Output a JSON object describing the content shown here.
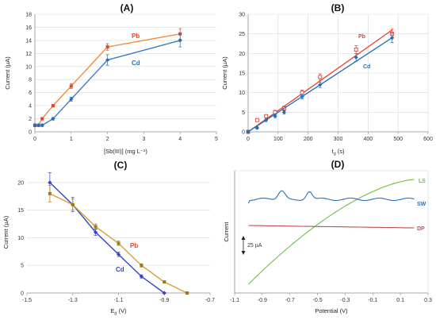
{
  "colors": {
    "pb": "#e8402b",
    "pb_line": "#f08a3c",
    "cd": "#1f6fbf",
    "cd_line": "#3a7ec9",
    "c_pb": "#a07818",
    "c_pb_line": "#d4a236",
    "c_cd": "#3344c8",
    "d_ls": "#6fbf44",
    "d_sw": "#2a6fb8",
    "d_dp": "#c0504d",
    "grid": "#d9d9d9",
    "axis": "#8c8c8c"
  },
  "chart_data": [
    {
      "id": "A",
      "type": "line",
      "title": "(A)",
      "xlabel": "[Sb(III)] (mg L⁻¹)",
      "ylabel": "Current (µA)",
      "xlim": [
        0,
        5
      ],
      "ylim": [
        0,
        18
      ],
      "xticks": [
        "0",
        "1",
        "2",
        "3",
        "4",
        "5"
      ],
      "yticks": [
        "0",
        "2",
        "4",
        "6",
        "8",
        "10",
        "12",
        "14",
        "16",
        "18"
      ],
      "grid": "horizontal",
      "series": [
        {
          "name": "Pb",
          "x": [
            0,
            0.1,
            0.2,
            0.5,
            1,
            2,
            4
          ],
          "y": [
            1,
            1,
            2,
            4,
            7,
            13,
            15
          ],
          "err": [
            0.2,
            0.2,
            0.2,
            0.2,
            0.4,
            0.5,
            0.8
          ]
        },
        {
          "name": "Cd",
          "x": [
            0,
            0.1,
            0.2,
            0.5,
            1,
            2,
            4
          ],
          "y": [
            1,
            1,
            1,
            2,
            5,
            11,
            14
          ],
          "err": [
            0.2,
            0.2,
            0.2,
            0.2,
            0.3,
            0.8,
            1.0
          ]
        }
      ]
    },
    {
      "id": "B",
      "type": "scatter",
      "title": "(B)",
      "xlabel": "t",
      "xlabel_sub": "d",
      "xlabel_unit": " (s)",
      "ylabel": "Current (µA)",
      "xlim": [
        0,
        600
      ],
      "ylim": [
        0,
        30
      ],
      "xticks": [
        "0",
        "100",
        "200",
        "300",
        "400",
        "500",
        "600"
      ],
      "yticks": [
        "0",
        "5",
        "10",
        "15",
        "20",
        "25",
        "30"
      ],
      "grid": "both",
      "series": [
        {
          "name": "Pb",
          "x": [
            0,
            30,
            60,
            90,
            120,
            180,
            240,
            360,
            480
          ],
          "y": [
            0,
            3,
            4,
            5,
            6,
            10,
            14,
            21,
            25
          ],
          "err": [
            0.3,
            0.4,
            0.4,
            0.5,
            0.6,
            0.7,
            0.8,
            1.0,
            1.2
          ],
          "fit": [
            [
              0,
              0
            ],
            [
              480,
              26
            ]
          ]
        },
        {
          "name": "Cd",
          "x": [
            0,
            30,
            60,
            90,
            120,
            180,
            240,
            360,
            480
          ],
          "y": [
            0,
            1,
            3,
            4,
            5,
            9,
            12,
            19,
            24
          ],
          "err": [
            0.3,
            0.3,
            0.4,
            0.4,
            0.5,
            0.6,
            0.7,
            1.0,
            1.2
          ],
          "fit": [
            [
              0,
              0
            ],
            [
              480,
              24
            ]
          ]
        }
      ]
    },
    {
      "id": "C",
      "type": "line",
      "title": "(C)",
      "xlabel": "E",
      "xlabel_sub": "d",
      "xlabel_unit": " (V)",
      "ylabel": "Current (µA)",
      "xlim": [
        -1.5,
        -0.7
      ],
      "ylim": [
        0,
        22
      ],
      "xticks": [
        "-1.5",
        "-1.3",
        "-1.1",
        "-0.9",
        "-0.7"
      ],
      "yticks": [
        "0",
        "5",
        "10",
        "15",
        "20"
      ],
      "grid": "horizontal",
      "series": [
        {
          "name": "Pb",
          "x": [
            -1.4,
            -1.3,
            -1.2,
            -1.1,
            -1.0,
            -0.9,
            -0.8
          ],
          "y": [
            18,
            16,
            12,
            9,
            5,
            2,
            0
          ],
          "err": [
            1.5,
            1.0,
            0.5,
            0.4,
            0.3,
            0.2,
            0.1
          ]
        },
        {
          "name": "Cd",
          "x": [
            -1.4,
            -1.3,
            -1.2,
            -1.1,
            -1.0,
            -0.9
          ],
          "y": [
            20,
            16,
            11,
            7,
            3,
            0
          ],
          "err": [
            1.8,
            1.3,
            0.6,
            0.4,
            0.3,
            0.1
          ]
        }
      ]
    },
    {
      "id": "D",
      "type": "line",
      "title": "(D)",
      "xlabel": "Potential (V)",
      "ylabel": "Current",
      "xlim": [
        -1.1,
        0.3
      ],
      "xticks": [
        "-1.1",
        "-0.9",
        "-0.7",
        "-0.5",
        "-0.3",
        "-0.1",
        "0.1",
        "0.3"
      ],
      "scale_bar": "25 µA",
      "series": [
        {
          "name": "LS"
        },
        {
          "name": "SW"
        },
        {
          "name": "DP"
        }
      ]
    }
  ]
}
